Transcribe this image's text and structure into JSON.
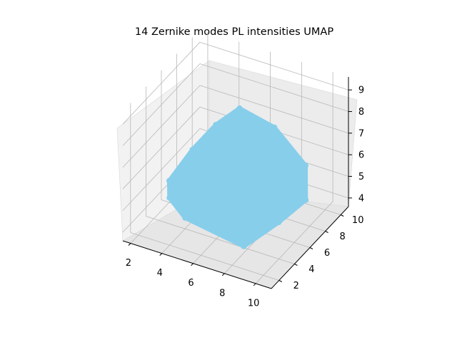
{
  "chart_data": {
    "type": "scatter",
    "projection": "3d",
    "title": "14 Zernike modes PL intensities UMAP",
    "xlabel": "",
    "ylabel": "",
    "zlabel": "",
    "xlim": [
      1.5,
      11.0
    ],
    "ylim": [
      1.0,
      11.0
    ],
    "zlim": [
      3.6,
      9.6
    ],
    "x_ticks": [
      2,
      4,
      6,
      8,
      10
    ],
    "y_ticks": [
      2,
      4,
      6,
      8,
      10
    ],
    "z_ticks": [
      4,
      5,
      6,
      7,
      8,
      9
    ],
    "grid": true,
    "legend": "none",
    "series": [
      {
        "color": "#87ceeb",
        "points": [
          {
            "x": 2.0,
            "y": 6.0,
            "z": 4.6
          },
          {
            "x": 2.5,
            "y": 8.0,
            "z": 5.4
          },
          {
            "x": 3.0,
            "y": 4.0,
            "z": 4.8
          },
          {
            "x": 3.5,
            "y": 9.0,
            "z": 6.4
          },
          {
            "x": 4.0,
            "y": 6.0,
            "z": 6.2
          },
          {
            "x": 4.5,
            "y": 3.0,
            "z": 4.6
          },
          {
            "x": 5.0,
            "y": 8.0,
            "z": 7.2
          },
          {
            "x": 5.5,
            "y": 5.0,
            "z": 7.0
          },
          {
            "x": 6.0,
            "y": 10.0,
            "z": 6.5
          },
          {
            "x": 6.2,
            "y": 6.5,
            "z": 8.2
          },
          {
            "x": 6.5,
            "y": 6.0,
            "z": 9.0
          },
          {
            "x": 7.0,
            "y": 4.0,
            "z": 6.8
          },
          {
            "x": 7.5,
            "y": 8.5,
            "z": 7.4
          },
          {
            "x": 8.0,
            "y": 6.0,
            "z": 6.6
          },
          {
            "x": 8.5,
            "y": 2.5,
            "z": 4.4
          },
          {
            "x": 9.0,
            "y": 9.5,
            "z": 5.6
          },
          {
            "x": 9.5,
            "y": 5.0,
            "z": 4.8
          },
          {
            "x": 10.0,
            "y": 7.5,
            "z": 5.0
          }
        ]
      }
    ]
  }
}
